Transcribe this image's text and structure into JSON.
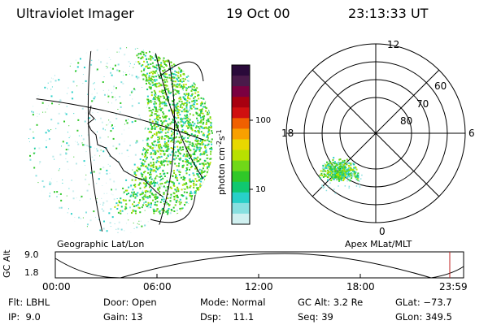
{
  "header": {
    "instrument": "Ultraviolet Imager",
    "date": "19 Oct 00",
    "time": "23:13:33 UT"
  },
  "left_map": {
    "caption": "Geographic Lat/Lon"
  },
  "colorbar": {
    "label": "photon cm",
    "label_sup1": "-2",
    "label_mid": "s",
    "label_sup2": "-1",
    "tick_100": "100",
    "tick_10": "10",
    "colors": [
      "#2a0a3a",
      "#4a1a4a",
      "#7a0040",
      "#a80010",
      "#d01010",
      "#f06000",
      "#f8a000",
      "#e8d800",
      "#b8e000",
      "#70d818",
      "#30c828",
      "#10c870",
      "#28d0c8",
      "#88e0e0",
      "#d0f0f0"
    ]
  },
  "polar": {
    "caption": "Apex MLat/MLT",
    "mlt_top": "12",
    "mlt_left": "18",
    "mlt_right": "6",
    "mlt_bottom": "0",
    "lat_60": "60",
    "lat_70": "70",
    "lat_80": "80"
  },
  "altitude_plot": {
    "ylabel": "GC Alt",
    "y_top": "9.0",
    "y_bottom": "1.8",
    "x_ticks": [
      "00:00",
      "06:00",
      "12:00",
      "18:00",
      "23:59"
    ],
    "marker_color": "#c02020"
  },
  "status": {
    "flt": "Flt: LBHL",
    "ip": "IP:  9.0",
    "door": "Door: Open",
    "gain": "Gain: 13",
    "mode": "Mode: Normal",
    "dsp": "Dsp:    11.1",
    "gcalt": "GC Alt: 3.2 Re",
    "seq": "Seq: 39",
    "glat": "GLat: −73.7",
    "glon": "GLon: 349.5"
  }
}
